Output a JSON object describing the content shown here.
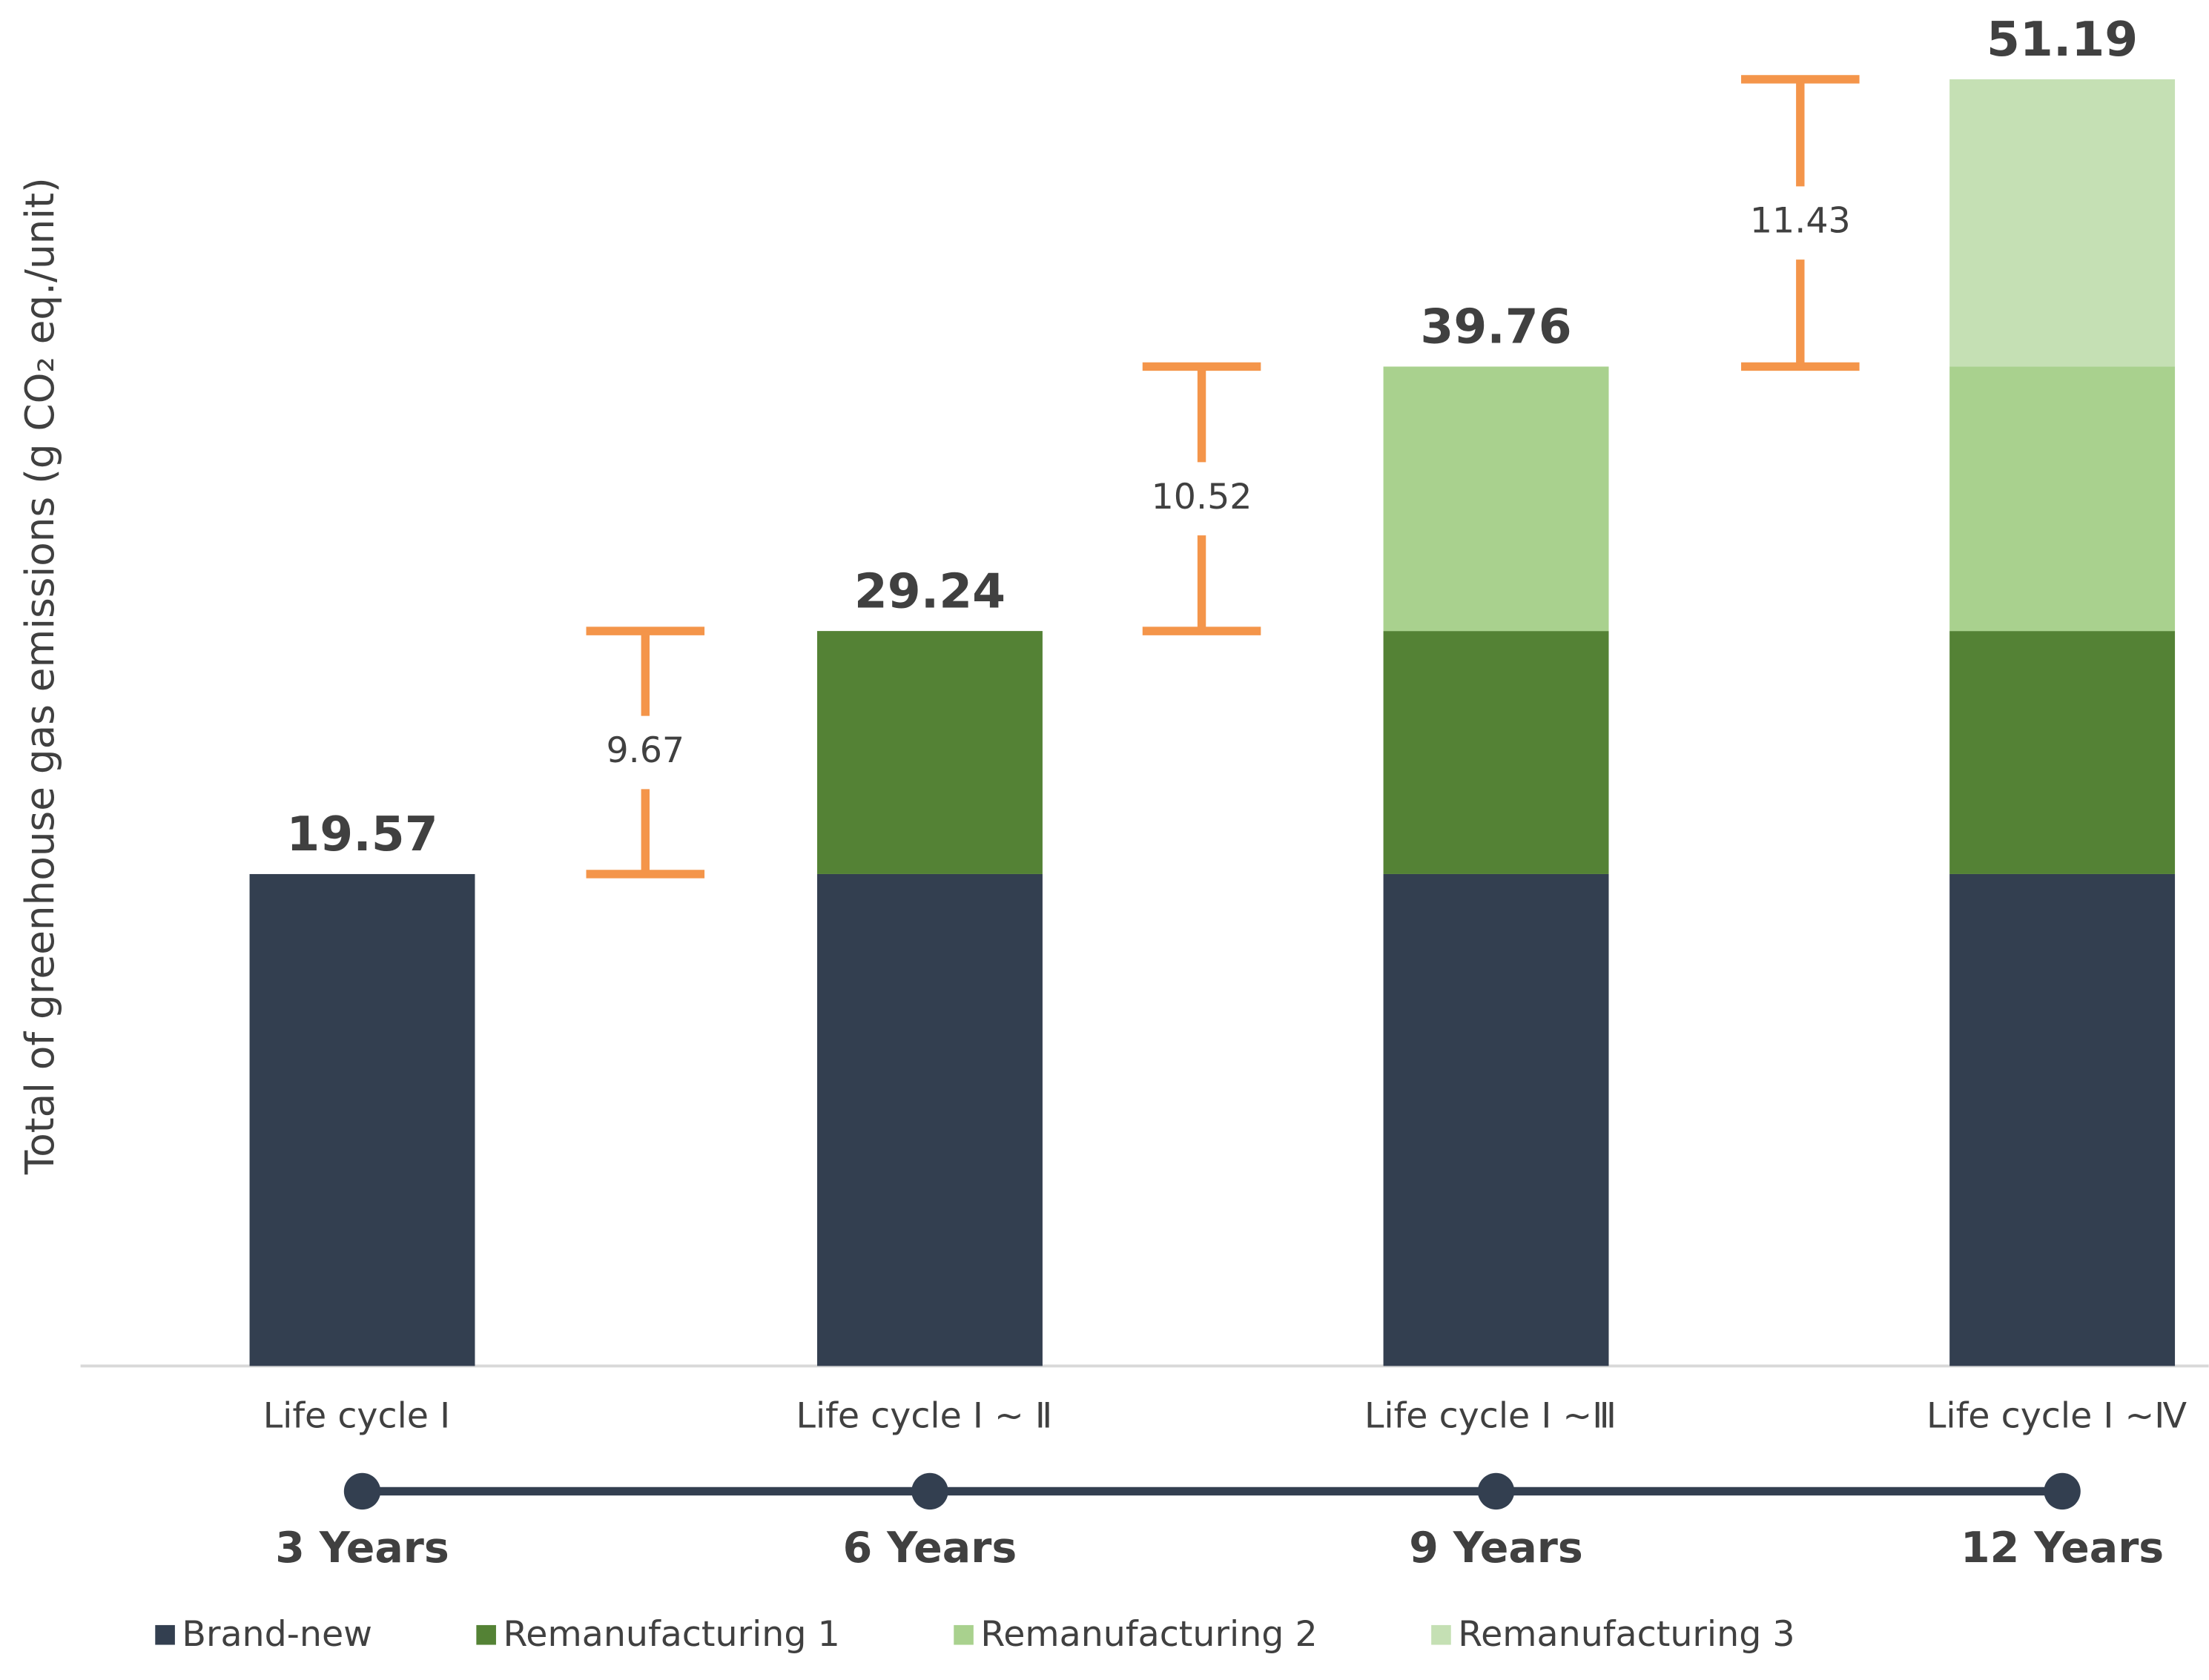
{
  "chart_data": {
    "type": "stacked-bar",
    "y_label": "Total of greenhouse gas emissions (g CO₂ eq./unit)",
    "categories": [
      "Life cycle Ⅰ",
      "Life cycle Ⅰ ~ Ⅱ",
      "Life cycle Ⅰ ~Ⅲ",
      "Life cycle Ⅰ ~Ⅳ"
    ],
    "timeline": [
      "3 Years",
      "6 Years",
      "9 Years",
      "12 Years"
    ],
    "series": [
      {
        "name": "Brand-new",
        "color": "#333f50",
        "values": [
          19.57,
          19.57,
          19.57,
          19.57
        ]
      },
      {
        "name": "Remanufacturing 1",
        "color": "#548235",
        "values": [
          null,
          9.67,
          9.67,
          9.67
        ]
      },
      {
        "name": "Remanufacturing 2",
        "color": "#a9d18e",
        "values": [
          null,
          null,
          10.52,
          10.52
        ]
      },
      {
        "name": "Remanufacturing 3",
        "color": "#c5e0b4",
        "values": [
          null,
          null,
          null,
          11.43
        ]
      }
    ],
    "total_labels": [
      "19.57",
      "29.24",
      "39.76",
      "51.19"
    ],
    "increment_color": "#f4954a",
    "timeline_color": "#333f50",
    "ylim": [
      0,
      53
    ]
  }
}
